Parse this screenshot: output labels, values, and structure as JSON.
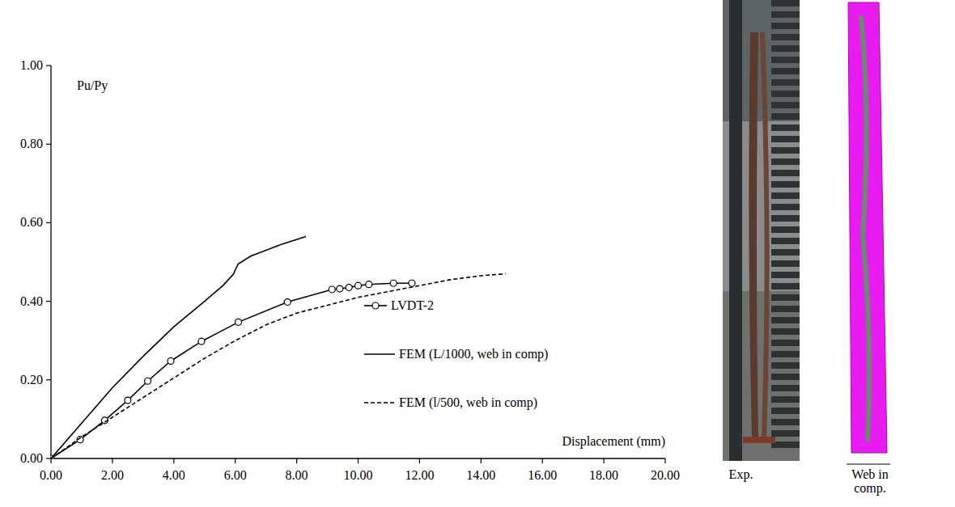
{
  "chart_data": {
    "type": "line",
    "y_label": "Pu/Py",
    "x_label": "Displacement (mm)",
    "xlim": [
      0,
      20
    ],
    "ylim": [
      0,
      1
    ],
    "xticks": [
      {
        "value": 0,
        "label": "0.00"
      },
      {
        "value": 2,
        "label": "2.00"
      },
      {
        "value": 4,
        "label": "4.00"
      },
      {
        "value": 6,
        "label": "6.00"
      },
      {
        "value": 8,
        "label": "8.00"
      },
      {
        "value": 10,
        "label": "10.00"
      },
      {
        "value": 12,
        "label": "12.00"
      },
      {
        "value": 14,
        "label": "14.00"
      },
      {
        "value": 16,
        "label": "16.00"
      },
      {
        "value": 18,
        "label": "18.00"
      },
      {
        "value": 20,
        "label": "20.00"
      }
    ],
    "yticks": [
      {
        "value": 0,
        "label": "0.00"
      },
      {
        "value": 0.2,
        "label": "0.20"
      },
      {
        "value": 0.4,
        "label": "0.40"
      },
      {
        "value": 0.6,
        "label": "0.60"
      },
      {
        "value": 0.8,
        "label": "0.80"
      },
      {
        "value": 1,
        "label": "1.00"
      }
    ],
    "grid": false,
    "legend": "center",
    "series": [
      {
        "name": "LVDT-2",
        "color": "#000000",
        "marker": "circle",
        "line_style": "solid",
        "x": [
          0,
          0.95,
          1.75,
          2.5,
          3.15,
          3.9,
          4.9,
          6.1,
          7.7,
          9.15,
          9.4,
          9.7,
          10.0,
          10.35,
          11.15,
          11.75
        ],
        "values": [
          0,
          0.048,
          0.097,
          0.148,
          0.197,
          0.248,
          0.298,
          0.347,
          0.398,
          0.43,
          0.432,
          0.435,
          0.44,
          0.443,
          0.446,
          0.446
        ]
      },
      {
        "name": "FEM (L/1000, web in comp)",
        "color": "#000000",
        "marker": "none",
        "line_style": "solid",
        "x": [
          0,
          1,
          2,
          3,
          4,
          5,
          5.6,
          5.95,
          6.0,
          6.1,
          6.5,
          7.0,
          7.5,
          8.3
        ],
        "values": [
          0,
          0.09,
          0.18,
          0.26,
          0.335,
          0.4,
          0.44,
          0.47,
          0.48,
          0.495,
          0.515,
          0.53,
          0.545,
          0.565
        ]
      },
      {
        "name": "FEM (l/500, web in comp)",
        "color": "#000000",
        "marker": "none",
        "line_style": "dashed",
        "x": [
          0,
          1,
          2,
          3,
          4,
          5,
          6,
          7,
          8,
          9,
          10,
          11,
          12,
          13,
          14,
          14.8
        ],
        "values": [
          0,
          0.055,
          0.105,
          0.155,
          0.205,
          0.255,
          0.3,
          0.34,
          0.37,
          0.39,
          0.41,
          0.425,
          0.44,
          0.455,
          0.465,
          0.47
        ]
      }
    ]
  },
  "images": [
    {
      "caption": "Exp."
    },
    {
      "caption": "Web in comp."
    }
  ]
}
